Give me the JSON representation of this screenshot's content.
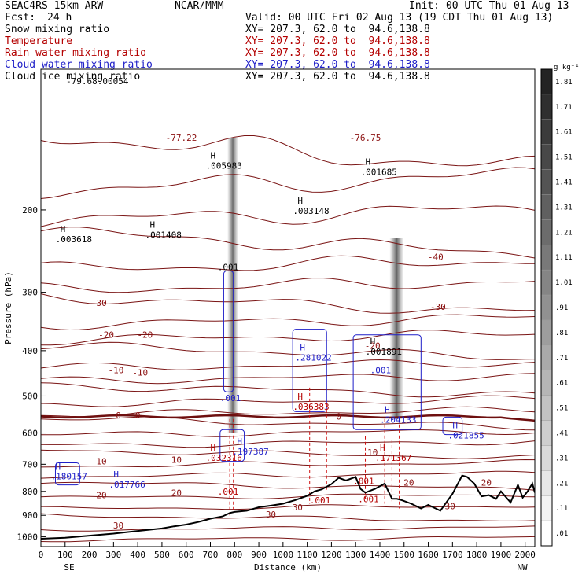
{
  "header": {
    "model": "SEAC4RS 15km ARW",
    "fcst_label": "Fcst:",
    "fcst_value": "24 h",
    "center": "NCAR/MMM",
    "init": "Init: 00 UTC Thu 01 Aug 13",
    "valid": "Valid: 00 UTC Fri 02 Aug 13 (19 CDT Thu 01 Aug 13)"
  },
  "legend": [
    {
      "name": "Snow mixing ratio",
      "color": "#000000",
      "xy": "XY= 207.3, 62.0 to  94.6,138.8"
    },
    {
      "name": "Temperature",
      "color": "#b40000",
      "xy": "XY= 207.3, 62.0 to  94.6,138.8"
    },
    {
      "name": "Rain water mixing ratio",
      "color": "#b40000",
      "xy": "XY= 207.3, 62.0 to  94.6,138.8"
    },
    {
      "name": "Cloud water mixing ratio",
      "color": "#1e1ec8",
      "xy": "XY= 207.3, 62.0 to  94.6,138.8"
    },
    {
      "name": "Cloud ice mixing ratio",
      "color": "#000000",
      "xy": "XY= 207.3, 62.0 to  94.6,138.8"
    }
  ],
  "colorbar": {
    "unit": "g kg⁻¹",
    "labels": [
      "1.81",
      "1.71",
      "1.61",
      "1.51",
      "1.41",
      "1.31",
      "1.21",
      "1.11",
      "1.01",
      ".91",
      ".81",
      ".71",
      ".61",
      ".51",
      ".41",
      ".31",
      ".21",
      ".11",
      ".01"
    ]
  },
  "chart_data": {
    "type": "cross-section",
    "xlabel": "Distance (km)",
    "ylabel": "Pressure (hPa)",
    "xlim": [
      0,
      2040
    ],
    "ylim": [
      1050,
      100
    ],
    "x_ticks": [
      0,
      100,
      200,
      300,
      400,
      500,
      600,
      700,
      800,
      900,
      1000,
      1100,
      1200,
      1300,
      1400,
      1500,
      1600,
      1700,
      1800,
      1900,
      2000
    ],
    "y_ticks": [
      200,
      300,
      400,
      500,
      600,
      700,
      800,
      900,
      1000
    ],
    "left_end_label": "SE",
    "right_end_label": "NW",
    "terrain": {
      "x": [
        0,
        100,
        200,
        300,
        400,
        500,
        550,
        600,
        650,
        700,
        750,
        780,
        800,
        850,
        900,
        950,
        1000,
        1050,
        1100,
        1130,
        1160,
        1200,
        1230,
        1260,
        1300,
        1320,
        1340,
        1380,
        1420,
        1450,
        1470,
        1490,
        1530,
        1570,
        1600,
        1620,
        1650,
        1700,
        1740,
        1760,
        1790,
        1820,
        1850,
        1880,
        1900,
        1940,
        1970,
        1990,
        2010,
        2030,
        2040
      ],
      "p": [
        1010,
        1005,
        995,
        985,
        972,
        960,
        950,
        942,
        930,
        915,
        905,
        890,
        885,
        880,
        865,
        858,
        850,
        835,
        818,
        800,
        792,
        772,
        748,
        758,
        745,
        790,
        805,
        790,
        770,
        830,
        830,
        835,
        850,
        870,
        855,
        865,
        880,
        810,
        740,
        745,
        770,
        820,
        815,
        830,
        800,
        845,
        775,
        825,
        800,
        770,
        805
      ]
    },
    "temperature_labels": [
      {
        "value": "-77.22",
        "x": 580,
        "p": 140
      },
      {
        "value": "-76.75",
        "x": 1340,
        "p": 140
      },
      {
        "value": "-40",
        "x": 1630,
        "p": 252
      },
      {
        "value": "-30",
        "x": 240,
        "p": 316
      },
      {
        "value": "-30",
        "x": 1640,
        "p": 322
      },
      {
        "value": "-20",
        "x": 270,
        "p": 370
      },
      {
        "value": "-20",
        "x": 430,
        "p": 370
      },
      {
        "value": "-20",
        "x": 1370,
        "p": 390
      },
      {
        "value": "-10",
        "x": 310,
        "p": 440
      },
      {
        "value": "-10",
        "x": 410,
        "p": 445
      },
      {
        "value": "0",
        "x": 320,
        "p": 550
      },
      {
        "value": "0",
        "x": 400,
        "p": 550
      },
      {
        "value": "0",
        "x": 1230,
        "p": 553
      },
      {
        "value": "10",
        "x": 250,
        "p": 690
      },
      {
        "value": "10",
        "x": 560,
        "p": 685
      },
      {
        "value": "10",
        "x": 1370,
        "p": 660
      },
      {
        "value": "20",
        "x": 250,
        "p": 815
      },
      {
        "value": "20",
        "x": 560,
        "p": 805
      },
      {
        "value": "20",
        "x": 1520,
        "p": 765
      },
      {
        "value": "20",
        "x": 1840,
        "p": 765
      },
      {
        "value": "30",
        "x": 320,
        "p": 945
      },
      {
        "value": "30",
        "x": 950,
        "p": 895
      },
      {
        "value": "30",
        "x": 1060,
        "p": 865
      },
      {
        "value": "30",
        "x": 1690,
        "p": 860
      }
    ],
    "maxima": [
      {
        "letter": "H",
        "value": ".003618",
        "x": 80,
        "p": 230,
        "color": "#000000"
      },
      {
        "letter": "H",
        "value": ".001408",
        "x": 450,
        "p": 225,
        "color": "#000000"
      },
      {
        "letter": "H",
        "value": ".005983",
        "x": 700,
        "p": 160,
        "color": "#000000"
      },
      {
        "letter": "H",
        "value": ".003148",
        "x": 1060,
        "p": 200,
        "color": "#000000"
      },
      {
        "letter": "H",
        "value": ".001685",
        "x": 1340,
        "p": 165,
        "color": "#000000"
      },
      {
        "letter": "H",
        "value": ".001891",
        "x": 1360,
        "p": 400,
        "color": "#000000"
      },
      {
        "letter": "H",
        "value": ".281022",
        "x": 1070,
        "p": 412,
        "color": "#1e1ec8"
      },
      {
        "letter": "H",
        "value": ".204133",
        "x": 1420,
        "p": 560,
        "color": "#1e1ec8"
      },
      {
        "letter": "H",
        "value": ".021855",
        "x": 1700,
        "p": 605,
        "color": "#1e1ec8"
      },
      {
        "letter": "H",
        "value": ".197387",
        "x": 810,
        "p": 655,
        "color": "#1e1ec8"
      },
      {
        "letter": "H",
        "value": ".180157",
        "x": 60,
        "p": 740,
        "color": "#1e1ec8"
      },
      {
        "letter": "H",
        "value": ".017766",
        "x": 300,
        "p": 770,
        "color": "#1e1ec8"
      },
      {
        "letter": "H",
        "value": ".032316",
        "x": 700,
        "p": 675,
        "color": "#b40000"
      },
      {
        "letter": "H",
        "value": ".036383",
        "x": 1060,
        "p": 525,
        "color": "#b40000"
      },
      {
        "letter": "H",
        "value": ".171367",
        "x": 1400,
        "p": 675,
        "color": "#b40000"
      }
    ],
    "contour_labels": [
      {
        "value": ".001",
        "x": 730,
        "p": 265,
        "color": "#000000"
      },
      {
        "value": ".001",
        "x": 740,
        "p": 505,
        "color": "#1e1ec8"
      },
      {
        "value": ".001",
        "x": 1360,
        "p": 440,
        "color": "#1e1ec8"
      },
      {
        "value": ".001",
        "x": 730,
        "p": 800,
        "color": "#b40000"
      },
      {
        "value": ".001",
        "x": 1110,
        "p": 835,
        "color": "#b40000"
      },
      {
        "value": ".001",
        "x": 1290,
        "p": 760,
        "color": "#b40000"
      },
      {
        "value": ".001",
        "x": 1310,
        "p": 830,
        "color": "#b40000"
      }
    ],
    "cloud_ice_max": "-79.68.00054"
  }
}
